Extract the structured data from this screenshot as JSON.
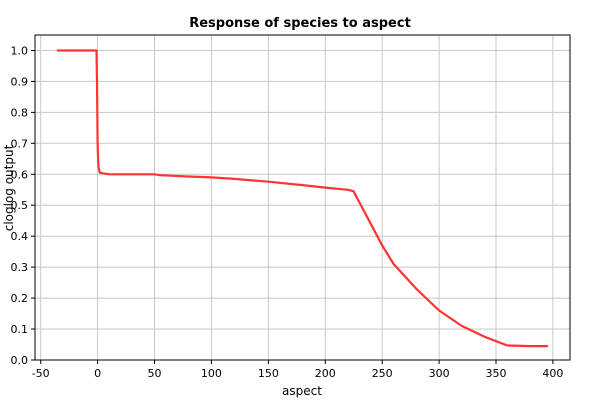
{
  "chart_data": {
    "type": "line",
    "title": "Response of species to aspect",
    "xlabel": "aspect",
    "ylabel": "cloglog output",
    "xlim": [
      -55,
      415
    ],
    "ylim": [
      0,
      1.05
    ],
    "x_ticks": [
      -50,
      0,
      50,
      100,
      150,
      200,
      250,
      300,
      350,
      400
    ],
    "y_ticks": [
      0.0,
      0.1,
      0.2,
      0.3,
      0.4,
      0.5,
      0.6,
      0.7,
      0.8,
      0.9,
      1.0
    ],
    "x_tick_labels": [
      "-50",
      "0",
      "50",
      "100",
      "150",
      "200",
      "250",
      "300",
      "350",
      "400"
    ],
    "y_tick_labels": [
      "0.0",
      "0.1",
      "0.2",
      "0.3",
      "0.4",
      "0.5",
      "0.6",
      "0.7",
      "0.8",
      "0.9",
      "1.0"
    ],
    "grid": true,
    "series": [
      {
        "color": "#ff3333",
        "x": [
          -35,
          -1,
          -0.5,
          0,
          0.5,
          1,
          2,
          5,
          10,
          30,
          50,
          55,
          80,
          100,
          120,
          150,
          180,
          200,
          220,
          225,
          227,
          240,
          250,
          260,
          280,
          300,
          320,
          340,
          360,
          380,
          395
        ],
        "y": [
          1.0,
          1.0,
          0.9,
          0.7,
          0.64,
          0.62,
          0.605,
          0.603,
          0.6,
          0.6,
          0.6,
          0.597,
          0.593,
          0.59,
          0.585,
          0.576,
          0.565,
          0.557,
          0.55,
          0.545,
          0.53,
          0.44,
          0.37,
          0.31,
          0.23,
          0.16,
          0.11,
          0.075,
          0.047,
          0.045,
          0.045
        ]
      }
    ]
  }
}
